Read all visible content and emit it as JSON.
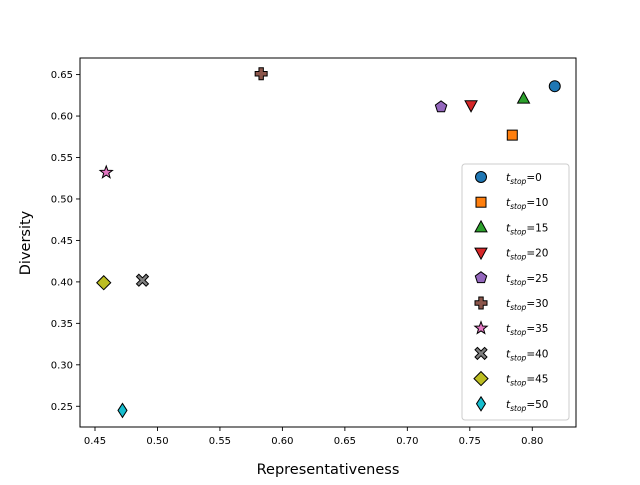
{
  "chart_data": {
    "type": "scatter",
    "title": "",
    "xlabel": "Representativeness",
    "ylabel": "Diversity",
    "xlim": [
      0.438,
      0.835
    ],
    "ylim": [
      0.225,
      0.67
    ],
    "grid": false,
    "legend_position": "lower-right",
    "xticks": [
      0.45,
      0.5,
      0.55,
      0.6,
      0.65,
      0.7,
      0.75,
      0.8
    ],
    "xtick_labels": [
      "0.45",
      "0.50",
      "0.55",
      "0.60",
      "0.65",
      "0.70",
      "0.75",
      "0.80"
    ],
    "yticks": [
      0.25,
      0.3,
      0.35,
      0.4,
      0.45,
      0.5,
      0.55,
      0.6,
      0.65
    ],
    "ytick_labels": [
      "0.25",
      "0.30",
      "0.35",
      "0.40",
      "0.45",
      "0.50",
      "0.55",
      "0.60",
      "0.65"
    ],
    "series": [
      {
        "name": "t_stop=0",
        "legend_base": "t",
        "legend_sub": "stop",
        "legend_value": "=0",
        "x": 0.818,
        "y": 0.636,
        "marker": "circle",
        "color": "#1f77b4"
      },
      {
        "name": "t_stop=10",
        "legend_base": "t",
        "legend_sub": "stop",
        "legend_value": "=10",
        "x": 0.784,
        "y": 0.577,
        "marker": "square",
        "color": "#ff7f0e"
      },
      {
        "name": "t_stop=15",
        "legend_base": "t",
        "legend_sub": "stop",
        "legend_value": "=15",
        "x": 0.793,
        "y": 0.621,
        "marker": "triangle-up",
        "color": "#2ca02c"
      },
      {
        "name": "t_stop=20",
        "legend_base": "t",
        "legend_sub": "stop",
        "legend_value": "=20",
        "x": 0.751,
        "y": 0.613,
        "marker": "triangle-down",
        "color": "#d62728"
      },
      {
        "name": "t_stop=25",
        "legend_base": "t",
        "legend_sub": "stop",
        "legend_value": "=25",
        "x": 0.727,
        "y": 0.611,
        "marker": "pentagon",
        "color": "#9467bd"
      },
      {
        "name": "t_stop=30",
        "legend_base": "t",
        "legend_sub": "stop",
        "legend_value": "=30",
        "x": 0.583,
        "y": 0.651,
        "marker": "plus",
        "color": "#8c564b"
      },
      {
        "name": "t_stop=35",
        "legend_base": "t",
        "legend_sub": "stop",
        "legend_value": "=35",
        "x": 0.459,
        "y": 0.532,
        "marker": "star",
        "color": "#e377c2"
      },
      {
        "name": "t_stop=40",
        "legend_base": "t",
        "legend_sub": "stop",
        "legend_value": "=40",
        "x": 0.488,
        "y": 0.402,
        "marker": "x",
        "color": "#7f7f7f"
      },
      {
        "name": "t_stop=45",
        "legend_base": "t",
        "legend_sub": "stop",
        "legend_value": "=45",
        "x": 0.457,
        "y": 0.399,
        "marker": "diamond",
        "color": "#bcbd22"
      },
      {
        "name": "t_stop=50",
        "legend_base": "t",
        "legend_sub": "stop",
        "legend_value": "=50",
        "x": 0.472,
        "y": 0.245,
        "marker": "thin-diamond",
        "color": "#17becf"
      }
    ]
  }
}
